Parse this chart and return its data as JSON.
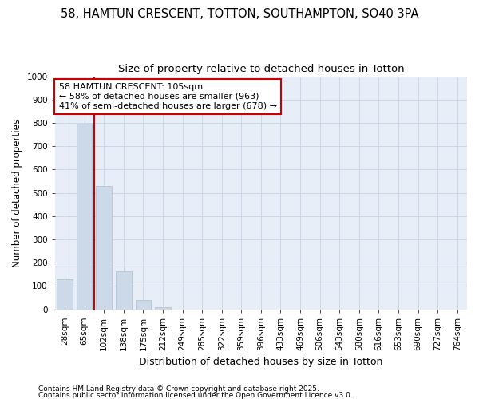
{
  "title1": "58, HAMTUN CRESCENT, TOTTON, SOUTHAMPTON, SO40 3PA",
  "title2": "Size of property relative to detached houses in Totton",
  "xlabel": "Distribution of detached houses by size in Totton",
  "ylabel": "Number of detached properties",
  "categories": [
    "28sqm",
    "65sqm",
    "102sqm",
    "138sqm",
    "175sqm",
    "212sqm",
    "249sqm",
    "285sqm",
    "322sqm",
    "359sqm",
    "396sqm",
    "433sqm",
    "469sqm",
    "506sqm",
    "543sqm",
    "580sqm",
    "616sqm",
    "653sqm",
    "690sqm",
    "727sqm",
    "764sqm"
  ],
  "values": [
    130,
    795,
    530,
    162,
    40,
    10,
    0,
    0,
    0,
    0,
    0,
    0,
    0,
    0,
    0,
    0,
    0,
    0,
    0,
    0,
    0
  ],
  "bar_color": "#ccd9e8",
  "bar_edgecolor": "#aabfcf",
  "vline_color": "#cc0000",
  "vline_x": 2.5,
  "annotation_text": "58 HAMTUN CRESCENT: 105sqm\n← 58% of detached houses are smaller (963)\n41% of semi-detached houses are larger (678) →",
  "annotation_box_color": "#ffffff",
  "annotation_box_edgecolor": "#cc0000",
  "ylim": [
    0,
    1000
  ],
  "yticks": [
    0,
    100,
    200,
    300,
    400,
    500,
    600,
    700,
    800,
    900,
    1000
  ],
  "grid_color": "#ccd8ea",
  "bg_color": "#e8eef8",
  "footer1": "Contains HM Land Registry data © Crown copyright and database right 2025.",
  "footer2": "Contains public sector information licensed under the Open Government Licence v3.0.",
  "title1_fontsize": 10.5,
  "title2_fontsize": 9.5,
  "xlabel_fontsize": 9,
  "ylabel_fontsize": 8.5,
  "tick_fontsize": 7.5,
  "annotation_fontsize": 8,
  "footer_fontsize": 6.5
}
